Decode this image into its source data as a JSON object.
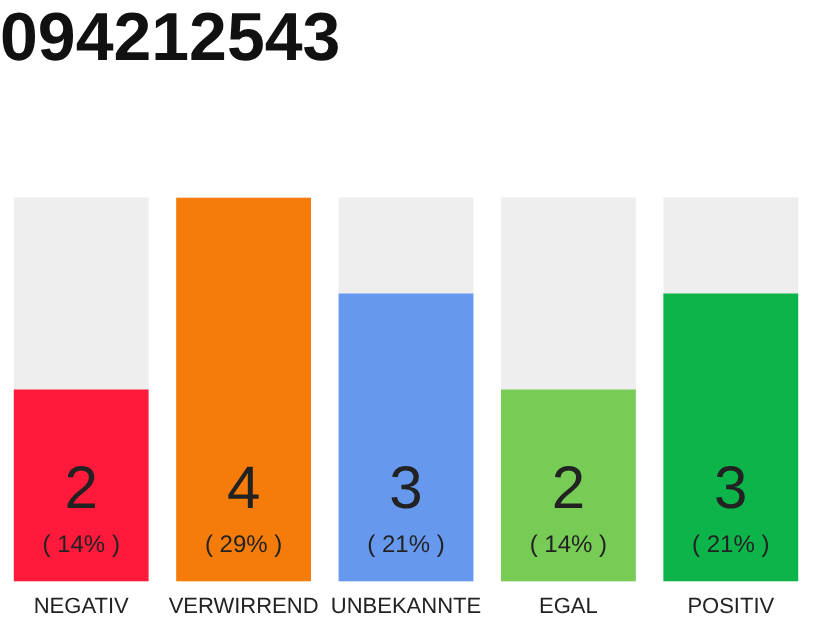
{
  "chart_data": {
    "type": "bar",
    "title": "094212543",
    "categories": [
      "NEGATIV",
      "VERWIRREND",
      "UNBEKANNTE",
      "EGAL",
      "POSITIV"
    ],
    "values": [
      2,
      4,
      3,
      2,
      3
    ],
    "colors": [
      "#ff1a3c",
      "#f57c0a",
      "#6699ee",
      "#77cc55",
      "#0db44a"
    ],
    "data_labels": true,
    "annotations": [
      "( 14% )",
      "( 29% )",
      "( 21% )",
      "( 14% )",
      "( 21% )"
    ],
    "grid": false,
    "legend": false
  }
}
